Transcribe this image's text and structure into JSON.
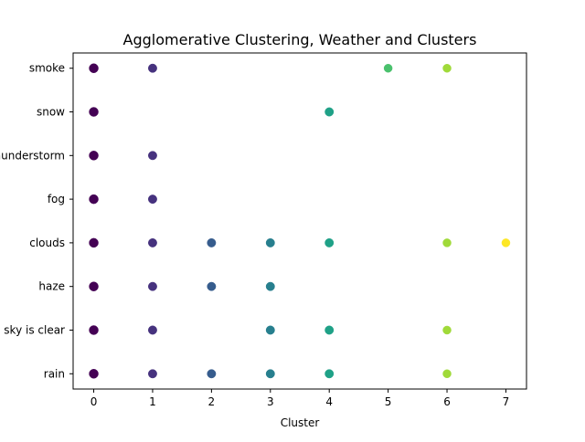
{
  "chart_data": {
    "type": "scatter",
    "title": "Agglomerative Clustering, Weather and Clusters",
    "xlabel": "Cluster",
    "ylabel": "",
    "xlim": [
      -0.35,
      7.35
    ],
    "x_ticks": [
      "0",
      "1",
      "2",
      "3",
      "4",
      "5",
      "6",
      "7"
    ],
    "y_categories": [
      "rain",
      "sky is clear",
      "haze",
      "clouds",
      "fog",
      "thunderstorm",
      "snow",
      "smoke"
    ],
    "grid": false,
    "cluster_colors": [
      "#440154",
      "#46327e",
      "#365c8d",
      "#277f8e",
      "#1fa187",
      "#4ac16d",
      "#a0da39",
      "#fde725"
    ],
    "points": [
      {
        "x": 0,
        "y": "smoke"
      },
      {
        "x": 1,
        "y": "smoke"
      },
      {
        "x": 5,
        "y": "smoke"
      },
      {
        "x": 6,
        "y": "smoke"
      },
      {
        "x": 0,
        "y": "snow"
      },
      {
        "x": 4,
        "y": "snow"
      },
      {
        "x": 0,
        "y": "thunderstorm"
      },
      {
        "x": 1,
        "y": "thunderstorm"
      },
      {
        "x": 0,
        "y": "fog"
      },
      {
        "x": 1,
        "y": "fog"
      },
      {
        "x": 0,
        "y": "clouds"
      },
      {
        "x": 1,
        "y": "clouds"
      },
      {
        "x": 2,
        "y": "clouds"
      },
      {
        "x": 3,
        "y": "clouds"
      },
      {
        "x": 4,
        "y": "clouds"
      },
      {
        "x": 6,
        "y": "clouds"
      },
      {
        "x": 7,
        "y": "clouds"
      },
      {
        "x": 0,
        "y": "haze"
      },
      {
        "x": 1,
        "y": "haze"
      },
      {
        "x": 2,
        "y": "haze"
      },
      {
        "x": 3,
        "y": "haze"
      },
      {
        "x": 0,
        "y": "sky is clear"
      },
      {
        "x": 1,
        "y": "sky is clear"
      },
      {
        "x": 3,
        "y": "sky is clear"
      },
      {
        "x": 4,
        "y": "sky is clear"
      },
      {
        "x": 6,
        "y": "sky is clear"
      },
      {
        "x": 0,
        "y": "rain"
      },
      {
        "x": 1,
        "y": "rain"
      },
      {
        "x": 2,
        "y": "rain"
      },
      {
        "x": 3,
        "y": "rain"
      },
      {
        "x": 4,
        "y": "rain"
      },
      {
        "x": 6,
        "y": "rain"
      }
    ]
  }
}
